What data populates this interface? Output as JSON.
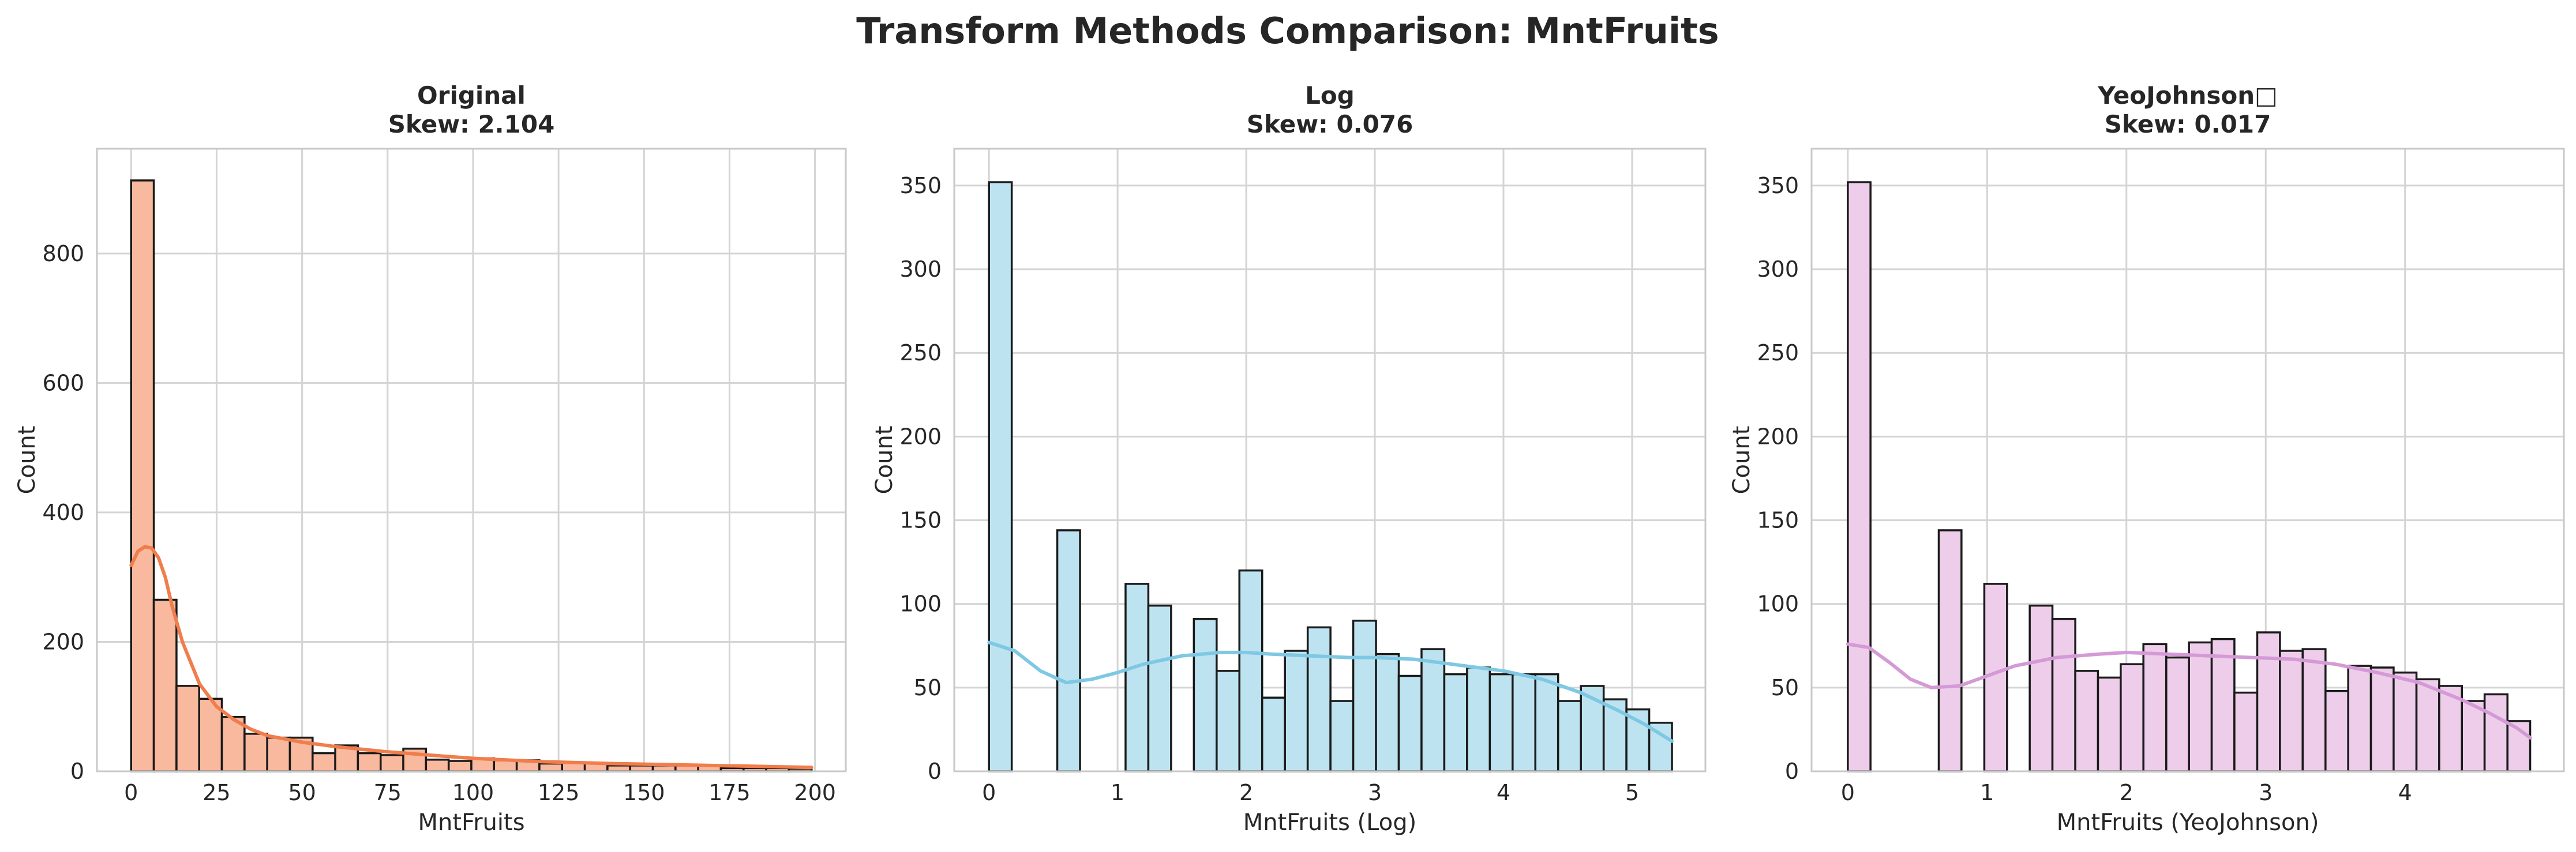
{
  "figure": {
    "title": "Transform Methods Comparison: MntFruits"
  },
  "chart_data": [
    {
      "type": "bar",
      "subtype": "histogram-with-kde",
      "title": "Original",
      "subtitle": "Skew: 2.104",
      "xlabel": "MntFruits",
      "ylabel": "Count",
      "xlim": [
        -10,
        209
      ],
      "ylim": [
        0,
        962
      ],
      "xticks": [
        0,
        25,
        50,
        75,
        100,
        125,
        150,
        175,
        200
      ],
      "yticks": [
        0,
        200,
        400,
        600,
        800
      ],
      "grid": true,
      "bar_color": "#f9b99e",
      "kde_color": "#f07d4b",
      "bins": [
        {
          "x0": 0,
          "x1": 6.63,
          "count": 913
        },
        {
          "x0": 6.63,
          "x1": 13.27,
          "count": 265
        },
        {
          "x0": 13.27,
          "x1": 19.9,
          "count": 132
        },
        {
          "x0": 19.9,
          "x1": 26.53,
          "count": 112
        },
        {
          "x0": 26.53,
          "x1": 33.17,
          "count": 84
        },
        {
          "x0": 33.17,
          "x1": 39.8,
          "count": 58
        },
        {
          "x0": 39.8,
          "x1": 46.43,
          "count": 52
        },
        {
          "x0": 46.43,
          "x1": 53.07,
          "count": 52
        },
        {
          "x0": 53.07,
          "x1": 59.7,
          "count": 28
        },
        {
          "x0": 59.7,
          "x1": 66.33,
          "count": 40
        },
        {
          "x0": 66.33,
          "x1": 72.97,
          "count": 28
        },
        {
          "x0": 72.97,
          "x1": 79.6,
          "count": 25
        },
        {
          "x0": 79.6,
          "x1": 86.23,
          "count": 35
        },
        {
          "x0": 86.23,
          "x1": 92.87,
          "count": 18
        },
        {
          "x0": 92.87,
          "x1": 99.5,
          "count": 16
        },
        {
          "x0": 99.5,
          "x1": 106.13,
          "count": 20
        },
        {
          "x0": 106.13,
          "x1": 112.77,
          "count": 17
        },
        {
          "x0": 112.77,
          "x1": 119.4,
          "count": 17
        },
        {
          "x0": 119.4,
          "x1": 126.03,
          "count": 12
        },
        {
          "x0": 126.03,
          "x1": 132.67,
          "count": 13
        },
        {
          "x0": 132.67,
          "x1": 139.3,
          "count": 13
        },
        {
          "x0": 139.3,
          "x1": 145.93,
          "count": 9
        },
        {
          "x0": 145.93,
          "x1": 152.57,
          "count": 9
        },
        {
          "x0": 152.57,
          "x1": 159.2,
          "count": 9
        },
        {
          "x0": 159.2,
          "x1": 165.83,
          "count": 9
        },
        {
          "x0": 165.83,
          "x1": 172.47,
          "count": 9
        },
        {
          "x0": 172.47,
          "x1": 179.1,
          "count": 5
        },
        {
          "x0": 179.1,
          "x1": 185.73,
          "count": 5
        },
        {
          "x0": 185.73,
          "x1": 192.37,
          "count": 5
        },
        {
          "x0": 192.37,
          "x1": 199,
          "count": 4
        }
      ],
      "kde": {
        "x": [
          0,
          2,
          4,
          6,
          8,
          10,
          12,
          15,
          20,
          25,
          30,
          35,
          40,
          50,
          60,
          75,
          90,
          100,
          120,
          140,
          160,
          180,
          199
        ],
        "y": [
          318,
          340,
          347,
          345,
          330,
          300,
          255,
          200,
          135,
          100,
          80,
          65,
          55,
          45,
          38,
          30,
          24,
          20,
          15,
          12,
          10,
          8,
          6
        ]
      }
    },
    {
      "type": "bar",
      "subtype": "histogram-with-kde",
      "title": "Log",
      "subtitle": "Skew: 0.076",
      "xlabel": "MntFruits (Log)",
      "ylabel": "Count",
      "xlim": [
        -0.27,
        5.57
      ],
      "ylim": [
        0,
        372
      ],
      "xticks": [
        0,
        1,
        2,
        3,
        4,
        5
      ],
      "yticks": [
        0,
        50,
        100,
        150,
        200,
        250,
        300,
        350
      ],
      "grid": true,
      "bar_color": "#bde3f0",
      "kde_color": "#7ec8e3",
      "bins": [
        {
          "x0": 0,
          "x1": 0.177,
          "count": 352
        },
        {
          "x0": 0.531,
          "x1": 0.708,
          "count": 144
        },
        {
          "x0": 1.062,
          "x1": 1.239,
          "count": 112
        },
        {
          "x0": 1.239,
          "x1": 1.416,
          "count": 99
        },
        {
          "x0": 1.593,
          "x1": 1.77,
          "count": 91
        },
        {
          "x0": 1.77,
          "x1": 1.947,
          "count": 60
        },
        {
          "x0": 1.947,
          "x1": 2.124,
          "count": 120
        },
        {
          "x0": 2.124,
          "x1": 2.301,
          "count": 44
        },
        {
          "x0": 2.301,
          "x1": 2.478,
          "count": 72
        },
        {
          "x0": 2.478,
          "x1": 2.655,
          "count": 86
        },
        {
          "x0": 2.655,
          "x1": 2.832,
          "count": 42
        },
        {
          "x0": 2.832,
          "x1": 3.009,
          "count": 90
        },
        {
          "x0": 3.009,
          "x1": 3.186,
          "count": 70
        },
        {
          "x0": 3.186,
          "x1": 3.363,
          "count": 57
        },
        {
          "x0": 3.363,
          "x1": 3.54,
          "count": 73
        },
        {
          "x0": 3.54,
          "x1": 3.717,
          "count": 58
        },
        {
          "x0": 3.717,
          "x1": 3.894,
          "count": 62
        },
        {
          "x0": 3.894,
          "x1": 4.071,
          "count": 58
        },
        {
          "x0": 4.071,
          "x1": 4.248,
          "count": 58
        },
        {
          "x0": 4.248,
          "x1": 4.425,
          "count": 58
        },
        {
          "x0": 4.425,
          "x1": 4.602,
          "count": 42
        },
        {
          "x0": 4.602,
          "x1": 4.779,
          "count": 51
        },
        {
          "x0": 4.779,
          "x1": 4.956,
          "count": 43
        },
        {
          "x0": 4.956,
          "x1": 5.133,
          "count": 37
        },
        {
          "x0": 5.133,
          "x1": 5.31,
          "count": 29
        }
      ],
      "kde": {
        "x": [
          0,
          0.2,
          0.4,
          0.6,
          0.8,
          1.0,
          1.2,
          1.5,
          1.8,
          2.0,
          2.2,
          2.5,
          2.8,
          3.0,
          3.3,
          3.6,
          4.0,
          4.3,
          4.6,
          4.9,
          5.1,
          5.31
        ],
        "y": [
          77,
          72,
          60,
          53,
          55,
          59,
          64,
          69,
          71,
          71,
          70,
          69,
          68,
          68,
          67,
          64,
          60,
          55,
          47,
          36,
          28,
          18
        ]
      }
    },
    {
      "type": "bar",
      "subtype": "histogram-with-kde",
      "title": "YeoJohnson□",
      "subtitle": "Skew: 0.017",
      "xlabel": "MntFruits (YeoJohnson)",
      "ylabel": "Count",
      "xlim": [
        -0.26,
        5.14
      ],
      "ylim": [
        0,
        372
      ],
      "xticks": [
        0,
        1,
        2,
        3,
        4
      ],
      "yticks": [
        0,
        50,
        100,
        150,
        200,
        250,
        300,
        350
      ],
      "grid": true,
      "bar_color": "#eecdea",
      "kde_color": "#d49ad6",
      "bins": [
        {
          "x0": 0,
          "x1": 0.163,
          "count": 352
        },
        {
          "x0": 0.653,
          "x1": 0.816,
          "count": 144
        },
        {
          "x0": 0.98,
          "x1": 1.143,
          "count": 112
        },
        {
          "x0": 1.306,
          "x1": 1.469,
          "count": 99
        },
        {
          "x0": 1.469,
          "x1": 1.633,
          "count": 91
        },
        {
          "x0": 1.633,
          "x1": 1.796,
          "count": 60
        },
        {
          "x0": 1.796,
          "x1": 1.959,
          "count": 56
        },
        {
          "x0": 1.959,
          "x1": 2.122,
          "count": 64
        },
        {
          "x0": 2.122,
          "x1": 2.286,
          "count": 76
        },
        {
          "x0": 2.286,
          "x1": 2.449,
          "count": 68
        },
        {
          "x0": 2.449,
          "x1": 2.612,
          "count": 77
        },
        {
          "x0": 2.612,
          "x1": 2.775,
          "count": 79
        },
        {
          "x0": 2.775,
          "x1": 2.939,
          "count": 47
        },
        {
          "x0": 2.939,
          "x1": 3.102,
          "count": 83
        },
        {
          "x0": 3.102,
          "x1": 3.265,
          "count": 72
        },
        {
          "x0": 3.265,
          "x1": 3.429,
          "count": 73
        },
        {
          "x0": 3.429,
          "x1": 3.592,
          "count": 48
        },
        {
          "x0": 3.592,
          "x1": 3.755,
          "count": 63
        },
        {
          "x0": 3.755,
          "x1": 3.918,
          "count": 62
        },
        {
          "x0": 3.918,
          "x1": 4.082,
          "count": 59
        },
        {
          "x0": 4.082,
          "x1": 4.245,
          "count": 55
        },
        {
          "x0": 4.245,
          "x1": 4.408,
          "count": 51
        },
        {
          "x0": 4.408,
          "x1": 4.571,
          "count": 42
        },
        {
          "x0": 4.571,
          "x1": 4.735,
          "count": 46
        },
        {
          "x0": 4.735,
          "x1": 4.898,
          "count": 30
        }
      ],
      "kde": {
        "x": [
          0,
          0.15,
          0.3,
          0.45,
          0.6,
          0.8,
          1.0,
          1.2,
          1.5,
          1.8,
          2.0,
          2.3,
          2.6,
          2.9,
          3.2,
          3.5,
          3.8,
          4.1,
          4.4,
          4.6,
          4.8,
          4.9
        ],
        "y": [
          76,
          74,
          65,
          55,
          50,
          51,
          57,
          63,
          68,
          70,
          71,
          70,
          69,
          68,
          67,
          64,
          59,
          53,
          43,
          35,
          26,
          20
        ]
      }
    }
  ]
}
